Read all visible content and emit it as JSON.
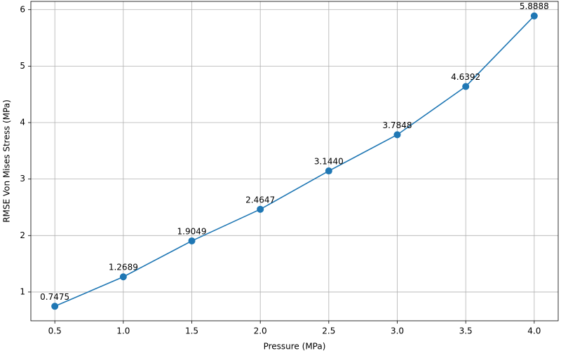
{
  "chart_data": {
    "type": "line",
    "x_label": "Pressure (MPa)",
    "y_label": "RMSE Von Mises Stress (MPa)",
    "x": [
      0.5,
      1.0,
      1.5,
      2.0,
      2.5,
      3.0,
      3.5,
      4.0
    ],
    "series": [
      {
        "color": "#1f77b4",
        "values": [
          0.7475,
          1.2689,
          1.9049,
          2.4647,
          3.144,
          3.7848,
          4.6392,
          5.8888
        ],
        "value_labels": [
          "0.7475",
          "1.2689",
          "1.9049",
          "2.4647",
          "3.1440",
          "3.7848",
          "4.6392",
          "5.8888"
        ]
      }
    ],
    "xlim": [
      0.325,
      4.175
    ],
    "ylim": [
      0.4905,
      6.1459
    ],
    "xticks": [
      0.5,
      {
        "value": 1,
        "label": "1.0"
      },
      1.5,
      {
        "value": 2,
        "label": "2.0"
      },
      2.5,
      {
        "value": 3,
        "label": "3.0"
      },
      3.5,
      {
        "value": 4,
        "label": "4.0"
      }
    ],
    "yticks": [
      1,
      2,
      3,
      4,
      5,
      6
    ],
    "grid": true
  }
}
